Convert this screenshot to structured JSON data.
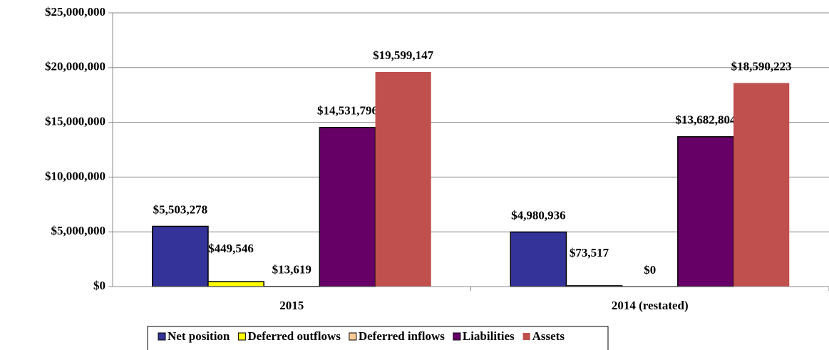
{
  "chart_data": {
    "type": "bar",
    "categories": [
      "2015",
      "2014 (restated)"
    ],
    "series": [
      {
        "name": "Net position",
        "color": "#333399",
        "values": [
          5503278,
          4980936
        ],
        "value_labels": [
          "$5,503,278",
          "$4,980,936"
        ]
      },
      {
        "name": "Deferred outflows",
        "color": "#ffff00",
        "values": [
          449546,
          73517
        ],
        "value_labels": [
          "$449,546",
          "$73,517"
        ]
      },
      {
        "name": "Deferred inflows",
        "color": "#ffcc99",
        "values": [
          13619,
          0
        ],
        "value_labels": [
          "$13,619",
          "$0"
        ]
      },
      {
        "name": "Liabilities",
        "color": "#660066",
        "values": [
          14531796,
          13682804
        ],
        "value_labels": [
          "$14,531,796",
          "$13,682,804"
        ]
      },
      {
        "name": "Assets",
        "color": "#c0504d",
        "values": [
          19599147,
          18590223
        ],
        "value_labels": [
          "$19,599,147",
          "$18,590,223"
        ]
      }
    ],
    "ylim": [
      0,
      25000000
    ],
    "yticks": [
      {
        "value": 0,
        "label": "$0"
      },
      {
        "value": 5000000,
        "label": "$5,000,000"
      },
      {
        "value": 10000000,
        "label": "$10,000,000"
      },
      {
        "value": 15000000,
        "label": "$15,000,000"
      },
      {
        "value": 20000000,
        "label": "$20,000,000"
      },
      {
        "value": 25000000,
        "label": "$25,000,000"
      }
    ],
    "grid": true,
    "legend": "bottom"
  }
}
